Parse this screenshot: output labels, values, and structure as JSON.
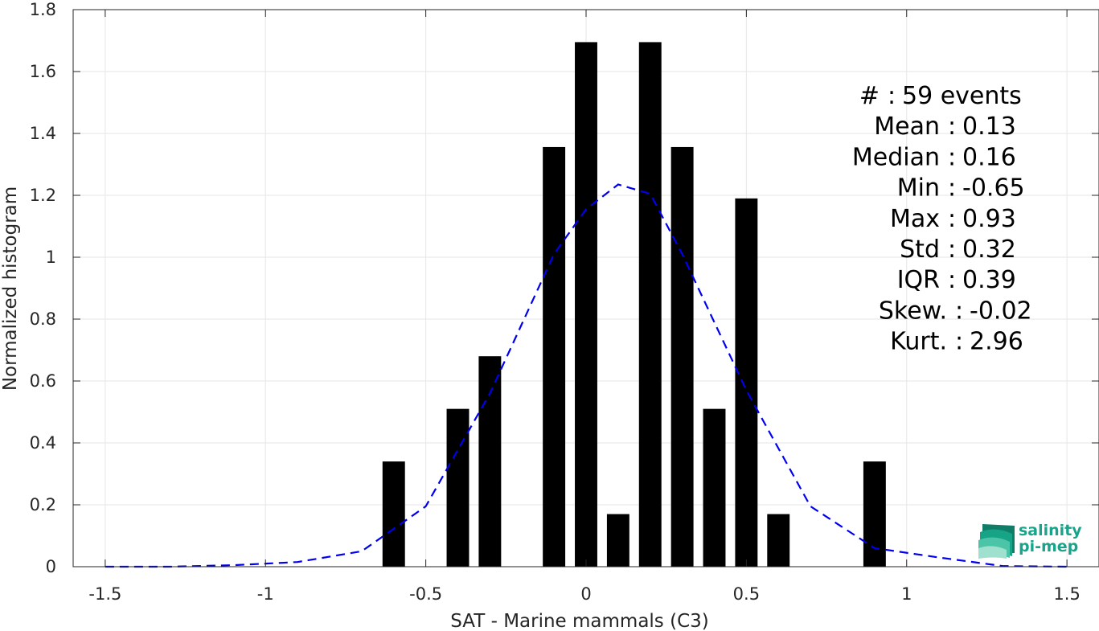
{
  "chart_data": {
    "type": "bar",
    "xlabel": "SAT - Marine mammals (C3)",
    "ylabel": "Normalized histogram",
    "xlim": [
      -1.6,
      1.6
    ],
    "ylim": [
      0,
      1.8
    ],
    "xticks": [
      -1.5,
      -1,
      -0.5,
      0,
      0.5,
      1,
      1.5
    ],
    "xtick_labels": [
      "-1.5",
      "-1",
      "-0.5",
      "0",
      "0.5",
      "1",
      "1.5"
    ],
    "yticks": [
      0,
      0.2,
      0.4,
      0.6,
      0.8,
      1,
      1.2,
      1.4,
      1.6,
      1.8
    ],
    "ytick_labels": [
      "0",
      "0.2",
      "0.4",
      "0.6",
      "0.8",
      "1",
      "1.2",
      "1.4",
      "1.6",
      "1.8"
    ],
    "grid": true,
    "bar_color": "#000000",
    "bar_width": 0.07,
    "bars": {
      "x": [
        -0.6,
        -0.4,
        -0.3,
        -0.1,
        0.0,
        0.1,
        0.2,
        0.3,
        0.4,
        0.5,
        0.6,
        0.9
      ],
      "values": [
        0.34,
        0.51,
        0.68,
        1.356,
        1.695,
        0.17,
        1.695,
        1.356,
        0.51,
        1.19,
        0.17,
        0.34
      ]
    },
    "fit_curve": {
      "style": "dashed",
      "color": "#0000ee",
      "x": [
        -1.5,
        -1.3,
        -1.1,
        -0.9,
        -0.7,
        -0.5,
        -0.3,
        -0.1,
        0.0,
        0.1,
        0.2,
        0.3,
        0.5,
        0.7,
        0.9,
        1.1,
        1.3,
        1.5
      ],
      "values": [
        0.0,
        0.0,
        0.005,
        0.015,
        0.05,
        0.195,
        0.56,
        1.01,
        1.155,
        1.235,
        1.205,
        1.01,
        0.57,
        0.195,
        0.06,
        0.03,
        0.002,
        0.0
      ]
    }
  },
  "stats": [
    {
      "label": "#",
      "sep": ":",
      "value": "59 events"
    },
    {
      "label": "Mean",
      "sep": ":",
      "value": "0.13"
    },
    {
      "label": "Median",
      "sep": ":",
      "value": "0.16"
    },
    {
      "label": "Min",
      "sep": ":",
      "value": "-0.65"
    },
    {
      "label": "Max",
      "sep": ":",
      "value": "0.93"
    },
    {
      "label": "Std",
      "sep": ":",
      "value": "0.32"
    },
    {
      "label": "IQR",
      "sep": ":",
      "value": "0.39"
    },
    {
      "label": "Skew.",
      "sep": ":",
      "value": "-0.02"
    },
    {
      "label": "Kurt.",
      "sep": ":",
      "value": "2.96"
    }
  ],
  "logo": {
    "line1": "salinity",
    "line2": "pi-mep",
    "color": "#1aa38b"
  }
}
